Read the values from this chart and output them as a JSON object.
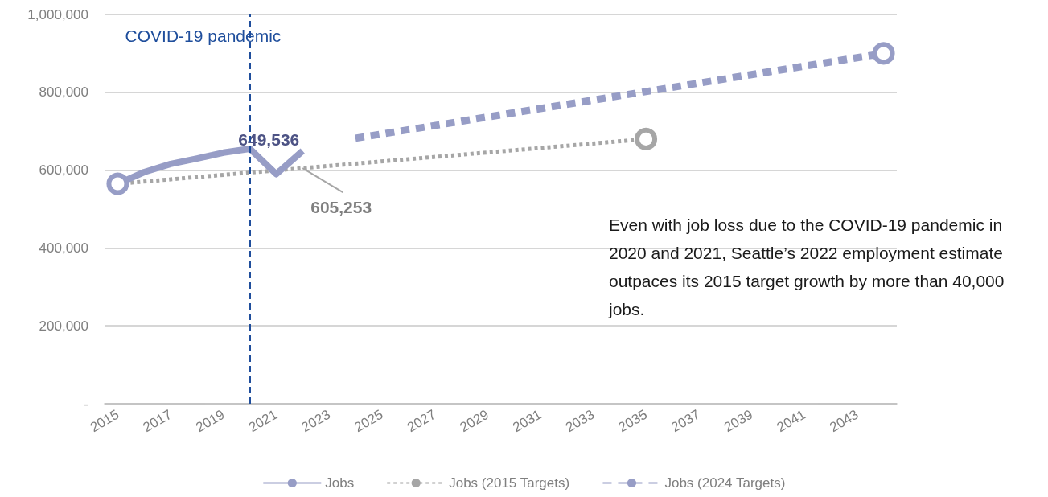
{
  "chart_data": {
    "type": "line",
    "xlim": [
      2014.5,
      2044.5
    ],
    "xticks": [
      2015,
      2017,
      2019,
      2021,
      2023,
      2025,
      2027,
      2029,
      2031,
      2033,
      2035,
      2037,
      2039,
      2041,
      2043
    ],
    "ylim": [
      0,
      1000000
    ],
    "yticks": [
      {
        "value": 0,
        "label": "-"
      },
      {
        "value": 200000,
        "label": "200,000"
      },
      {
        "value": 400000,
        "label": "400,000"
      },
      {
        "value": 600000,
        "label": "600,000"
      },
      {
        "value": 800000,
        "label": "800,000"
      },
      {
        "value": 1000000,
        "label": "1,000,000"
      }
    ],
    "grid": "y",
    "legend": "bottom",
    "series": [
      {
        "name": "Jobs",
        "color": "#979dc6",
        "line_style": "solid",
        "marker": "none",
        "x": [
          2015,
          2016,
          2017,
          2018,
          2019,
          2020,
          2021,
          2022
        ],
        "values": [
          565000,
          595000,
          616000,
          630000,
          645000,
          655000,
          590000,
          649536
        ],
        "value_labels": [
          null,
          null,
          null,
          null,
          null,
          null,
          null,
          "649,536"
        ]
      },
      {
        "name": "Jobs (2015 Targets)",
        "color": "#a6a6a6",
        "line_style": "dotted",
        "marker": "none",
        "x": [
          2015,
          2022,
          2035
        ],
        "values": [
          565000,
          605253,
          680000
        ]
      },
      {
        "name": "Jobs (2024 Targets)",
        "color": "#979dc6",
        "line_style": "dashed",
        "marker": "none",
        "x": [
          2024,
          2044
        ],
        "values": [
          682000,
          900000
        ]
      },
      {
        "type": "scatter",
        "color": "#979dc6",
        "marker": "circle",
        "x": [
          2015,
          2044
        ],
        "values": [
          565000,
          900000
        ]
      },
      {
        "type": "scatter",
        "color": "#a6a6a6",
        "marker": "circle",
        "x": [
          2035
        ],
        "values": [
          680000
        ]
      }
    ],
    "ref_lines": [
      {
        "axis": "x",
        "value": 2020,
        "label": "COVID-19 pandemic",
        "color": "#1f4e9c",
        "line_style": "dashed"
      }
    ],
    "annotations": [
      {
        "text": "605,253",
        "x": 2022,
        "y": 605253
      },
      "Even with job loss due to the COVID-19 pandemic in 2020 and 2021, Seattle’s 2022 employment estimate outpaces its 2015 target growth by more than 40,000 jobs."
    ]
  }
}
